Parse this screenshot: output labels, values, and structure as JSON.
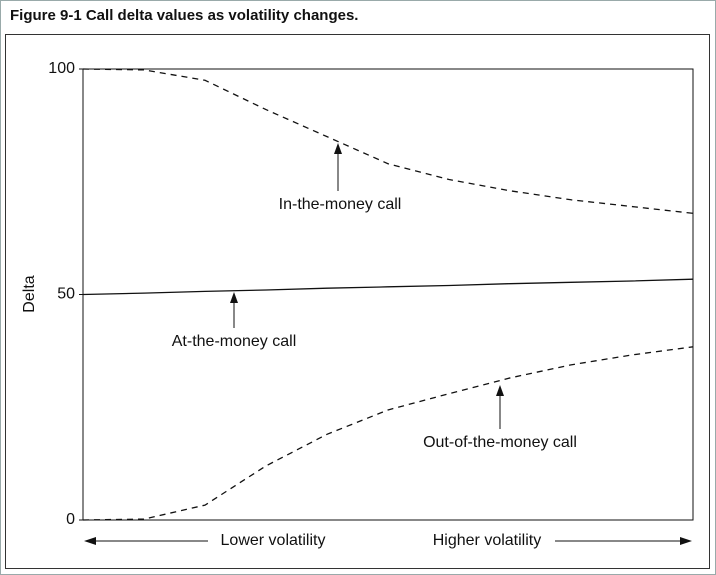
{
  "chart_data": {
    "type": "line",
    "title": "Figure 9-1  Call delta values as volatility changes.",
    "y_label": "Delta",
    "x_label_left": "Lower volatility",
    "x_label_right": "Higher volatility",
    "x": [
      0,
      1,
      2,
      3,
      4,
      5,
      6,
      7,
      8,
      9,
      10
    ],
    "xlim": [
      0,
      10
    ],
    "ylim": [
      0,
      100
    ],
    "yticks": [
      0,
      50,
      100
    ],
    "series": [
      {
        "name": "In-the-money call",
        "color": "#111111",
        "dashed": true,
        "values": [
          100,
          99.8,
          97.5,
          91,
          85,
          79,
          75.5,
          73,
          71,
          69.5,
          68
        ]
      },
      {
        "name": "At-the-money call",
        "color": "#111111",
        "dashed": false,
        "values": [
          50,
          50.3,
          50.7,
          51,
          51.4,
          51.7,
          52,
          52.4,
          52.7,
          53,
          53.4
        ]
      },
      {
        "name": "Out-of-the-money call",
        "color": "#111111",
        "dashed": true,
        "values": [
          0,
          0.2,
          3.3,
          12,
          19,
          24.4,
          28,
          31.5,
          34.4,
          36.6,
          38.4
        ]
      }
    ]
  }
}
